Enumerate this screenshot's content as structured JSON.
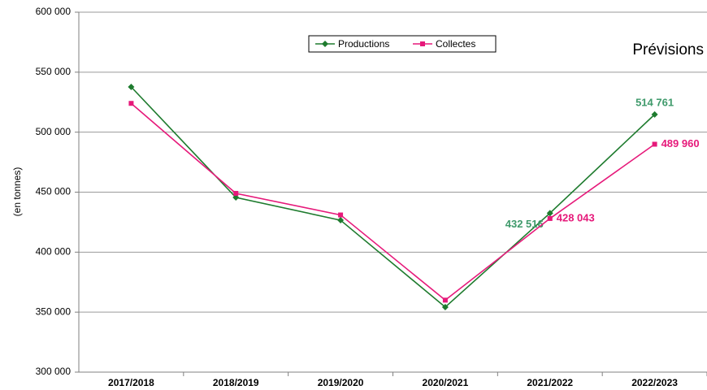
{
  "chart_data": {
    "type": "line",
    "y_label": "(en tonnes)",
    "annotation": "Prévisions",
    "categories": [
      "2017/2018",
      "2018/2019",
      "2019/2020",
      "2020/2021",
      "2021/2022",
      "2022/2023"
    ],
    "series": [
      {
        "name": "Productions",
        "color": "#1e7b2e",
        "label_color": "#3f9a6b",
        "marker": "diamond",
        "values": [
          537700,
          445600,
          426600,
          354200,
          432516,
          514761
        ],
        "value_labels": [
          null,
          null,
          null,
          null,
          "432 516",
          "514 761"
        ]
      },
      {
        "name": "Collectes",
        "color": "#e6197a",
        "label_color": "#e6197a",
        "marker": "square",
        "values": [
          524000,
          449000,
          431000,
          360000,
          428043,
          489960
        ],
        "value_labels": [
          null,
          null,
          null,
          null,
          "428 043",
          "489 960"
        ]
      }
    ],
    "ylim": [
      300000,
      600000
    ],
    "yticks": [
      {
        "value": 300000,
        "label": "300 000"
      },
      {
        "value": 350000,
        "label": "350 000"
      },
      {
        "value": 400000,
        "label": "400 000"
      },
      {
        "value": 450000,
        "label": "450 000"
      },
      {
        "value": 500000,
        "label": "500 000"
      },
      {
        "value": 550000,
        "label": "550 000"
      },
      {
        "value": 600000,
        "label": "600 000"
      }
    ],
    "grid": true,
    "legend": "upper center"
  }
}
